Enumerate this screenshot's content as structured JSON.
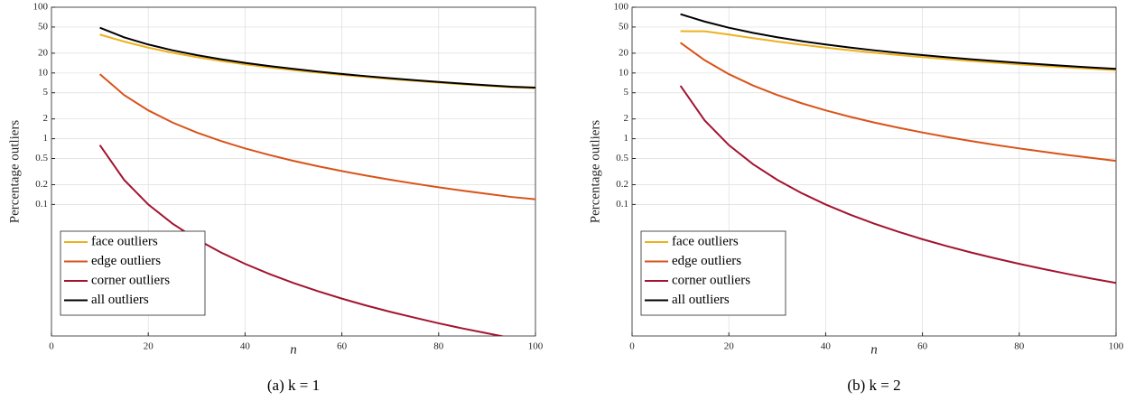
{
  "chart_data": [
    {
      "type": "line",
      "caption": "(a) k = 1",
      "xlabel": "n",
      "ylabel": "Percentage outliers",
      "xlim": [
        0,
        100
      ],
      "xticks": [
        0,
        20,
        40,
        60,
        80,
        100
      ],
      "ylim": [
        0.001,
        100
      ],
      "yticks": [
        0.1,
        0.2,
        0.5,
        1,
        2,
        5,
        10,
        20,
        50,
        100
      ],
      "log_y": true,
      "grid": true,
      "legend": "lower left",
      "x": [
        10,
        15,
        20,
        25,
        30,
        35,
        40,
        45,
        50,
        55,
        60,
        65,
        70,
        75,
        80,
        85,
        90,
        95,
        100
      ],
      "series": [
        {
          "name": "face outliers",
          "color": "#EDB120",
          "values": [
            38.4,
            30.04,
            24.3,
            20.31,
            17.42,
            15.24,
            13.54,
            12.17,
            11.06,
            10.13,
            9.344,
            8.671,
            8.089,
            7.579,
            7.13,
            6.731,
            6.374,
            6.053,
            5.88
          ]
        },
        {
          "name": "edge outliers",
          "color": "#D95319",
          "values": [
            9.6,
            4.622,
            2.7,
            1.766,
            1.244,
            0.9236,
            0.7125,
            0.5663,
            0.4608,
            0.3823,
            0.3222,
            0.2753,
            0.2379,
            0.2076,
            0.1828,
            0.1622,
            0.1449,
            0.1302,
            0.12
          ]
        },
        {
          "name": "corner outliers",
          "color": "#A2142F",
          "values": [
            0.8,
            0.237,
            0.1,
            0.0512,
            0.0296,
            0.01866,
            0.0125,
            0.00878,
            0.0064,
            0.00481,
            0.0037,
            0.00291,
            0.00233,
            0.0019,
            0.00156,
            0.0013,
            0.0011,
            0.00093,
            0.0008
          ]
        },
        {
          "name": "all outliers",
          "color": "#000000",
          "values": [
            48.8,
            34.9,
            27.1,
            22.13,
            18.7,
            16.18,
            14.26,
            12.75,
            11.53,
            10.52,
            9.67,
            8.95,
            8.33,
            7.79,
            7.31,
            6.89,
            6.52,
            6.18,
            6.0
          ]
        }
      ]
    },
    {
      "type": "line",
      "caption": "(b) k = 2",
      "xlabel": "n",
      "ylabel": "Percentage outliers",
      "xlim": [
        0,
        100
      ],
      "xticks": [
        0,
        20,
        40,
        60,
        80,
        100
      ],
      "ylim": [
        0.001,
        100
      ],
      "yticks": [
        0.1,
        0.2,
        0.5,
        1,
        2,
        5,
        10,
        20,
        50,
        100
      ],
      "log_y": true,
      "grid": true,
      "legend": "lower left",
      "x": [
        10,
        15,
        20,
        25,
        30,
        35,
        40,
        45,
        50,
        55,
        60,
        65,
        70,
        75,
        80,
        85,
        90,
        95,
        100
      ],
      "series": [
        {
          "name": "face outliers",
          "color": "#EDB120",
          "values": [
            43.2,
            43.02,
            38.4,
            33.87,
            30.04,
            26.9,
            24.3,
            22.14,
            20.31,
            18.76,
            17.42,
            16.26,
            15.24,
            14.34,
            13.54,
            12.82,
            12.17,
            11.59,
            11.06
          ]
        },
        {
          "name": "edge outliers",
          "color": "#D95319",
          "values": [
            28.8,
            15.64,
            9.6,
            6.451,
            4.622,
            3.471,
            2.7,
            2.16,
            1.766,
            1.471,
            1.244,
            1.066,
            0.9236,
            0.8078,
            0.7125,
            0.6331,
            0.5663,
            0.5095,
            0.4608
          ]
        },
        {
          "name": "corner outliers",
          "color": "#A2142F",
          "values": [
            6.4,
            1.896,
            0.8,
            0.4096,
            0.237,
            0.1493,
            0.1,
            0.0702,
            0.0512,
            0.0385,
            0.0296,
            0.0233,
            0.01866,
            0.01517,
            0.0125,
            0.01042,
            0.00878,
            0.00746,
            0.0064
          ]
        },
        {
          "name": "all outliers",
          "color": "#000000",
          "values": [
            78.4,
            60.56,
            48.8,
            40.73,
            34.9,
            30.52,
            27.1,
            24.37,
            22.13,
            20.27,
            18.7,
            17.35,
            16.18,
            15.16,
            14.26,
            13.46,
            12.75,
            12.11,
            11.53
          ]
        }
      ]
    }
  ]
}
